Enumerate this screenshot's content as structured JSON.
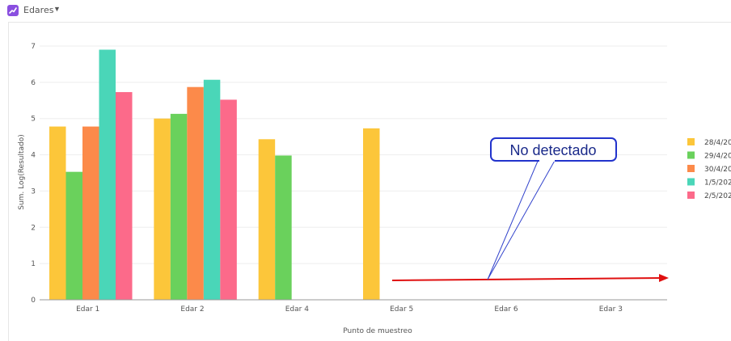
{
  "header": {
    "title": "Edares",
    "dropdown_icon": "caret-down-icon",
    "app_icon": "chart-icon",
    "app_icon_color": "#8a4fe0"
  },
  "chart_data": {
    "type": "bar",
    "title": "",
    "xlabel": "Punto de muestreo",
    "ylabel": "Sum. Log(Resultado)",
    "ylim": [
      0,
      7
    ],
    "yticks": [
      "0",
      "1",
      "2",
      "3",
      "4",
      "5",
      "6",
      "7"
    ],
    "grid": true,
    "legend_position": "right",
    "categories": [
      "Edar 1",
      "Edar 2",
      "Edar 4",
      "Edar 5",
      "Edar 6",
      "Edar 3"
    ],
    "series": [
      {
        "name": "28/4/20",
        "color": "#fcc63a",
        "values": [
          4.78,
          5.0,
          4.43,
          4.73,
          null,
          null
        ]
      },
      {
        "name": "29/4/20",
        "color": "#6ad15c",
        "values": [
          3.53,
          5.13,
          3.98,
          null,
          null,
          null
        ]
      },
      {
        "name": "30/4/20",
        "color": "#fc8a4a",
        "values": [
          4.78,
          5.87,
          null,
          null,
          null,
          null
        ]
      },
      {
        "name": "1/5/202",
        "color": "#4ad6b8",
        "values": [
          6.9,
          6.07,
          null,
          null,
          null,
          null
        ]
      },
      {
        "name": "2/5/202",
        "color": "#fc6a8a",
        "values": [
          5.73,
          5.52,
          null,
          null,
          null,
          null
        ]
      }
    ],
    "annotation": {
      "text": "No detectado",
      "arrow_color": "#e01010",
      "callout_border": "#2233cc"
    }
  }
}
